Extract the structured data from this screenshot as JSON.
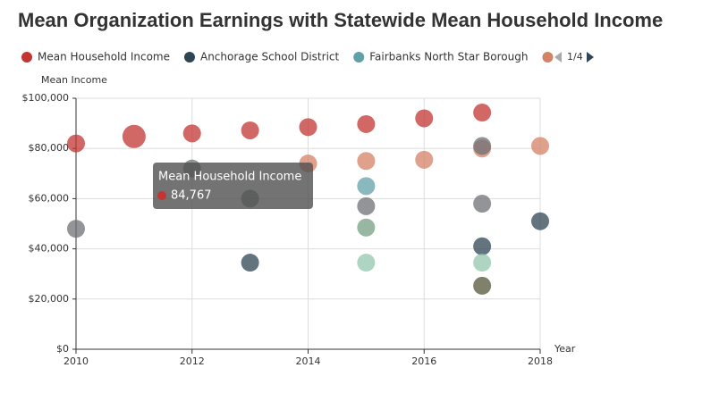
{
  "chart_data": {
    "type": "scatter",
    "title": "Mean Organization Earnings with Statewide Mean Household Income",
    "y_label": "Mean Income",
    "x_label": "Year",
    "legend_page": "1/4",
    "xlim": [
      2010,
      2018
    ],
    "xticks": [
      2010,
      2012,
      2014,
      2016,
      2018
    ],
    "ylim": [
      0,
      100000
    ],
    "yticks": [
      {
        "value": 0,
        "label": "$0"
      },
      {
        "value": 20000,
        "label": "$20,000"
      },
      {
        "value": 40000,
        "label": "$40,000"
      },
      {
        "value": 60000,
        "label": "$60,000"
      },
      {
        "value": 80000,
        "label": "$80,000"
      },
      {
        "value": 100000,
        "label": "$100,000"
      }
    ],
    "grid": true,
    "series": [
      {
        "name": "Mean Household Income",
        "color": "#c23531",
        "x": [
          2010,
          2011,
          2012,
          2013,
          2014,
          2015,
          2016,
          2017
        ],
        "values": [
          82000,
          84767,
          86000,
          87200,
          88500,
          89700,
          92000,
          94300
        ],
        "value_labels": [
          null,
          "84,767",
          null,
          null,
          null,
          null,
          null,
          null
        ]
      },
      {
        "name": "Anchorage School District",
        "color": "#2f4554",
        "x": [
          2013,
          2017,
          2018
        ],
        "values": [
          34500,
          41000,
          51000
        ]
      },
      {
        "name": "Fairbanks North Star Borough",
        "color": "#61a0a8",
        "x": [
          2015
        ],
        "values": [
          65000
        ]
      },
      {
        "name": null,
        "color": "#d48265",
        "x": [
          2014,
          2015,
          2016,
          2017,
          2018
        ],
        "values": [
          74000,
          75000,
          75500,
          80000,
          81000
        ]
      },
      {
        "name": null,
        "color": "#91c7ae",
        "x": [
          2015,
          2017
        ],
        "values": [
          34500,
          34500
        ]
      },
      {
        "name": null,
        "color": "#749f83",
        "x": [
          2015
        ],
        "values": [
          48500
        ]
      },
      {
        "name": null,
        "color": "#6e7074",
        "x": [
          2010,
          2012,
          2013,
          2015,
          2017,
          2017
        ],
        "values": [
          48000,
          72000,
          60000,
          57000,
          58000,
          81000
        ]
      },
      {
        "name": null,
        "color": "#54573a",
        "x": [
          2017
        ],
        "values": [
          25300
        ]
      }
    ]
  }
}
